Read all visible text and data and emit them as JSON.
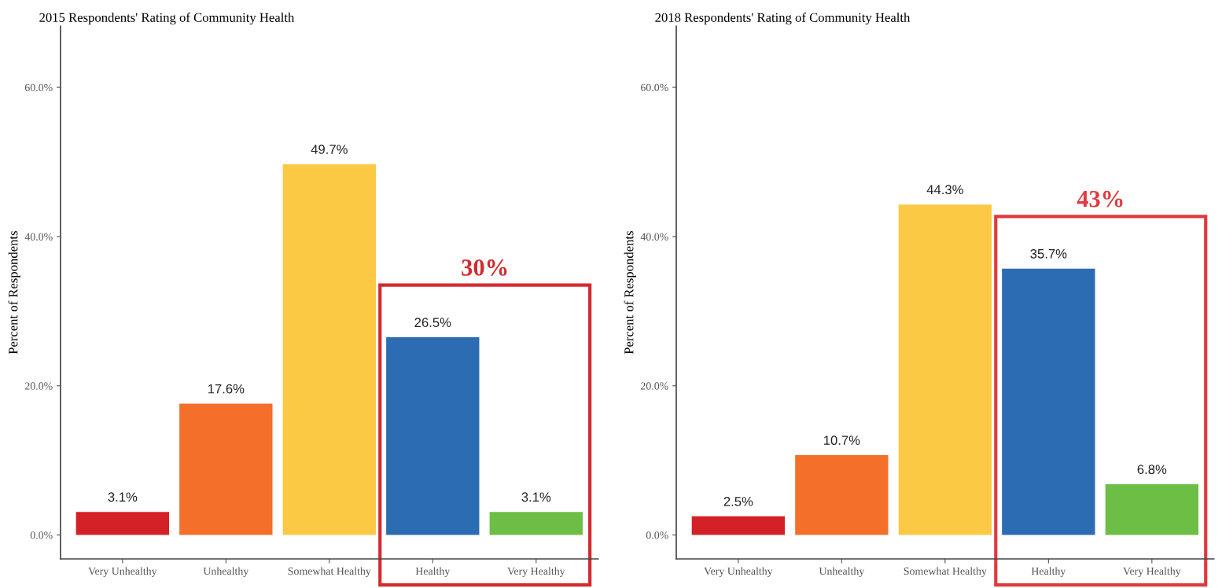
{
  "chart_data": [
    {
      "type": "bar",
      "title": "2015 Respondents' Rating of Community Health",
      "ylabel": "Percent of Respondents",
      "categories": [
        "Very Unhealthy",
        "Unhealthy",
        "Somewhat Healthy",
        "Healthy",
        "Very Healthy"
      ],
      "values": [
        3.1,
        17.6,
        49.7,
        26.5,
        3.1
      ],
      "value_labels": [
        "3.1%",
        "17.6%",
        "49.7%",
        "26.5%",
        "3.1%"
      ],
      "colors": [
        "#d42027",
        "#f36f2a",
        "#fcc945",
        "#2b6cb2",
        "#6dbe45"
      ],
      "ylim": [
        -3.2,
        68.2
      ],
      "yticks": [
        {
          "value": 0,
          "label": "0.0%"
        },
        {
          "value": 20,
          "label": "20.0%"
        },
        {
          "value": 40,
          "label": "40.0%"
        },
        {
          "value": 60,
          "label": "60.0%"
        }
      ],
      "annotations": [
        "30%"
      ],
      "grid": false
    },
    {
      "type": "bar",
      "title": "2018 Respondents' Rating of Community Health",
      "ylabel": "Percent of Respondents",
      "categories": [
        "Very Unhealthy",
        "Unhealthy",
        "Somewhat Healthy",
        "Healthy",
        "Very Healthy"
      ],
      "values": [
        2.5,
        10.7,
        44.3,
        35.7,
        6.8
      ],
      "value_labels": [
        "2.5%",
        "10.7%",
        "44.3%",
        "35.7%",
        "6.8%"
      ],
      "colors": [
        "#d42027",
        "#f36f2a",
        "#fcc945",
        "#2b6cb2",
        "#6dbe45"
      ],
      "ylim": [
        -3.2,
        68.2
      ],
      "yticks": [
        {
          "value": 0,
          "label": "0.0%"
        },
        {
          "value": 20,
          "label": "20.0%"
        },
        {
          "value": 40,
          "label": "40.0%"
        },
        {
          "value": 60,
          "label": "60.0%"
        }
      ],
      "annotations": [
        "43%"
      ],
      "grid": false
    }
  ]
}
